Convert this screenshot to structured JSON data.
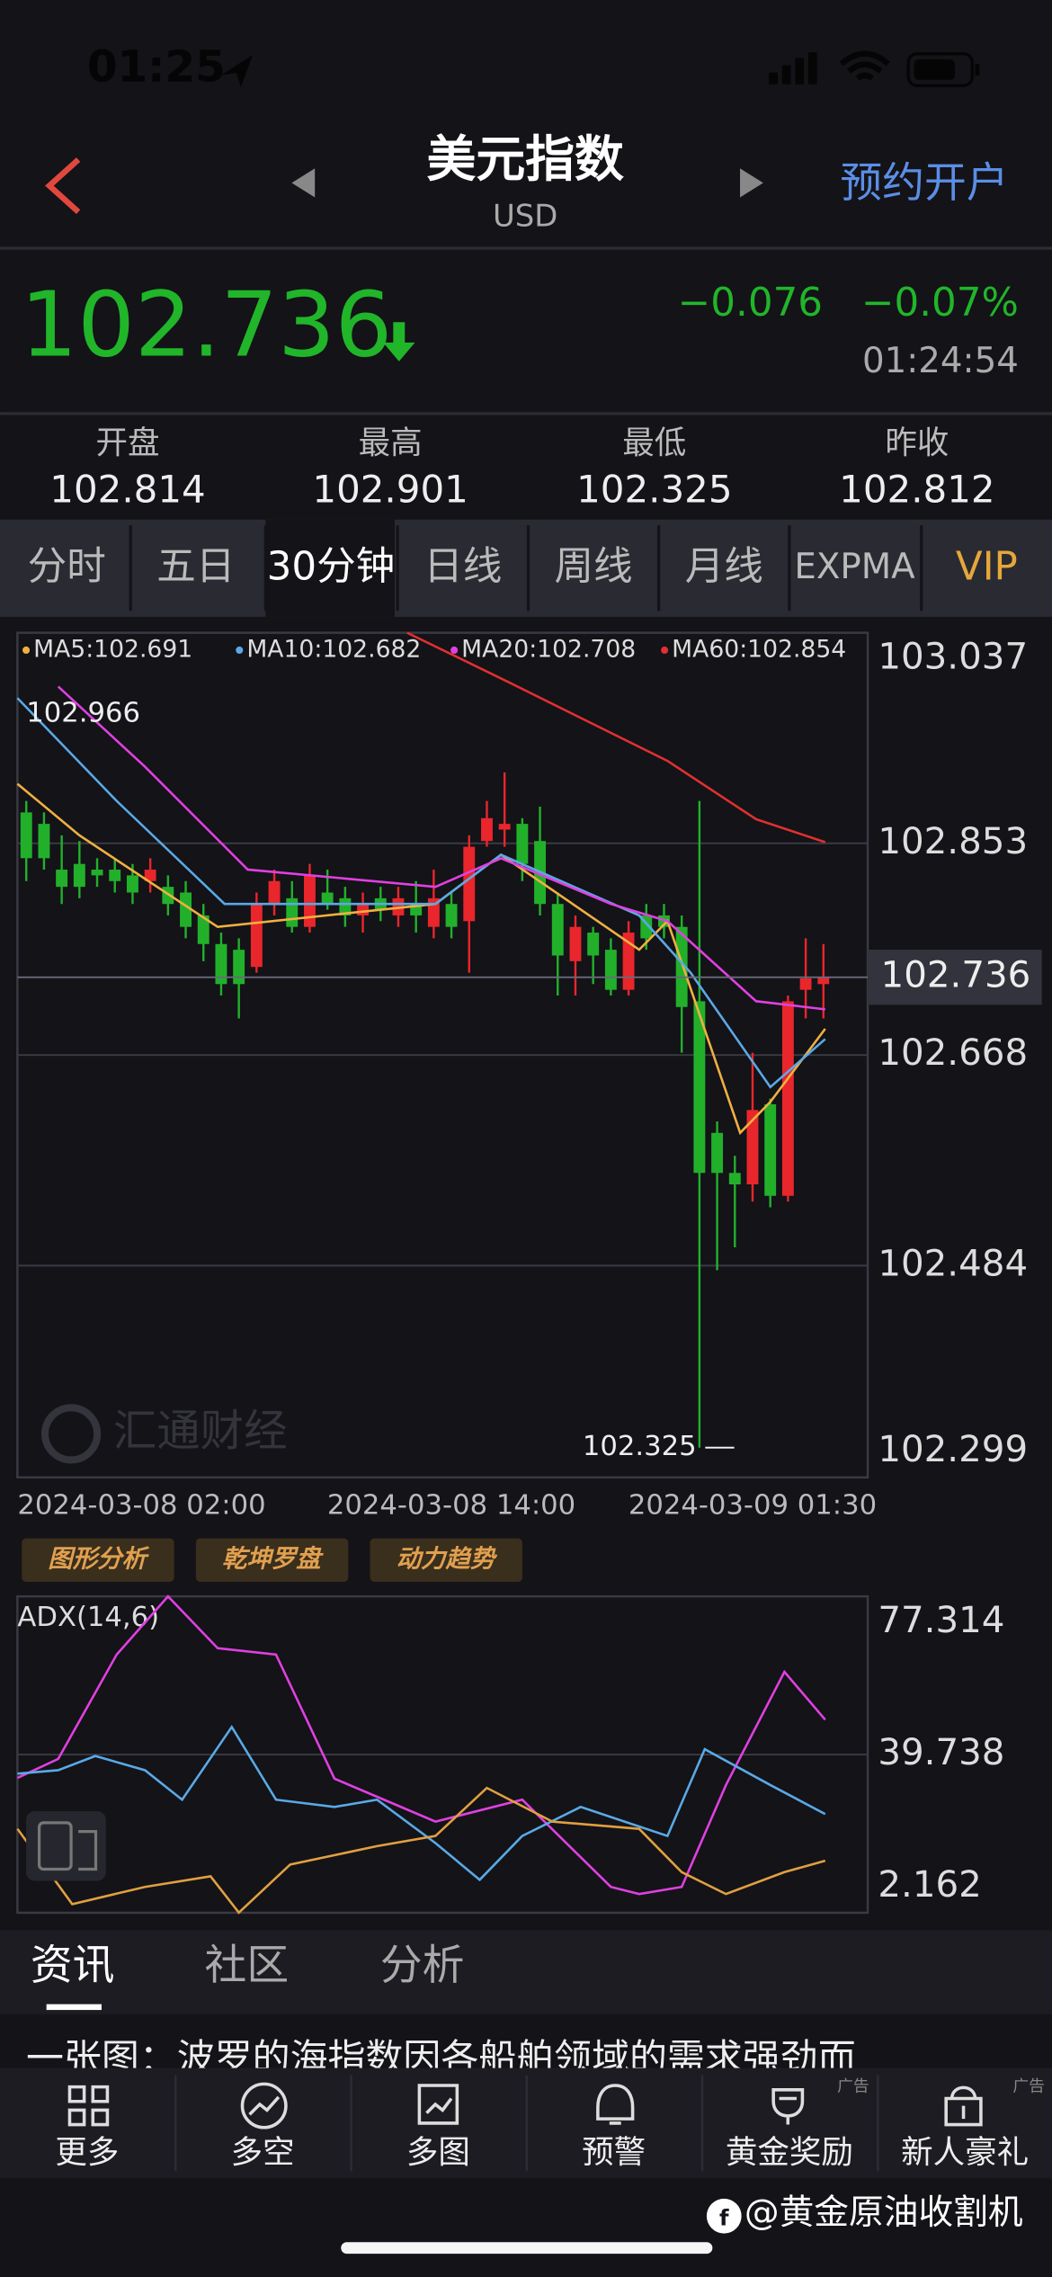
{
  "status_bar": {
    "time": "01:25"
  },
  "header": {
    "title": "美元指数",
    "subtitle": "USD",
    "action": "预约开户"
  },
  "quote": {
    "price": "102.736",
    "change": "−0.076",
    "change_pct": "−0.07%",
    "time": "01:24:54"
  },
  "stats": [
    {
      "label": "开盘",
      "value": "102.814"
    },
    {
      "label": "最高",
      "value": "102.901"
    },
    {
      "label": "最低",
      "value": "102.325"
    },
    {
      "label": "昨收",
      "value": "102.812"
    }
  ],
  "tabs": [
    "分时",
    "五日",
    "30分钟",
    "日线",
    "周线",
    "月线",
    "EXPMA",
    "VIP"
  ],
  "chart_data": [
    {
      "type": "candlestick",
      "up_color": "#e8262b",
      "down_color": "#22b02b",
      "xlim": [
        -0.5,
        47.5
      ],
      "xticks": [
        {
          "value": 0,
          "label": "2024-03-08 02:00"
        },
        {
          "value": 24,
          "label": "2024-03-08 14:00"
        },
        {
          "value": 41,
          "label": "2024-03-09 01:30"
        }
      ],
      "ylim": [
        102.299,
        103.037
      ],
      "yticks": [
        103.037,
        102.853,
        102.668,
        102.484,
        102.299
      ],
      "grid": true,
      "current": 102.736,
      "open": [
        102.88,
        102.87,
        102.83,
        102.835,
        102.83,
        102.83,
        102.825,
        102.82,
        102.815,
        102.81,
        102.79,
        102.765,
        102.76,
        102.745,
        102.8,
        102.805,
        102.78,
        102.81,
        102.805,
        102.79,
        102.805,
        102.79,
        102.8,
        102.78,
        102.8,
        102.785,
        102.855,
        102.865,
        102.87,
        102.855,
        102.8,
        102.75,
        102.775,
        102.76,
        102.725,
        102.79,
        102.79,
        102.78,
        102.715,
        102.6,
        102.565,
        102.555,
        102.625,
        102.545,
        102.725,
        102.73
      ],
      "high": [
        102.89,
        102.88,
        102.86,
        102.855,
        102.84,
        102.84,
        102.835,
        102.84,
        102.825,
        102.82,
        102.8,
        102.775,
        102.77,
        102.81,
        102.83,
        102.82,
        102.835,
        102.83,
        102.815,
        102.81,
        102.815,
        102.815,
        102.82,
        102.83,
        102.81,
        102.86,
        102.89,
        102.915,
        102.875,
        102.885,
        102.81,
        102.79,
        102.78,
        102.77,
        102.785,
        102.8,
        102.8,
        102.79,
        102.89,
        102.61,
        102.58,
        102.67,
        102.63,
        102.72,
        102.77,
        102.765
      ],
      "low": [
        102.82,
        102.83,
        102.8,
        102.805,
        102.815,
        102.81,
        102.8,
        102.81,
        102.79,
        102.77,
        102.75,
        102.72,
        102.7,
        102.74,
        102.79,
        102.775,
        102.775,
        102.795,
        102.78,
        102.775,
        102.785,
        102.78,
        102.775,
        102.77,
        102.77,
        102.74,
        102.85,
        102.85,
        102.82,
        102.79,
        102.72,
        102.72,
        102.73,
        102.72,
        102.72,
        102.76,
        102.77,
        102.67,
        102.325,
        102.48,
        102.5,
        102.54,
        102.535,
        102.54,
        102.7,
        102.7
      ],
      "close": [
        102.84,
        102.84,
        102.815,
        102.815,
        102.825,
        102.82,
        102.81,
        102.83,
        102.8,
        102.78,
        102.765,
        102.73,
        102.73,
        102.8,
        102.82,
        102.78,
        102.825,
        102.8,
        102.79,
        102.8,
        102.795,
        102.805,
        102.79,
        102.805,
        102.78,
        102.85,
        102.875,
        102.87,
        102.835,
        102.8,
        102.755,
        102.78,
        102.755,
        102.725,
        102.775,
        102.77,
        102.78,
        102.71,
        102.565,
        102.565,
        102.555,
        102.62,
        102.545,
        102.715,
        102.735,
        102.736
      ],
      "series": [
        {
          "name": "MA5:102.691",
          "color": "#f0b040",
          "x": [
            -0.5,
            3,
            10.8,
            23.1,
            26.8,
            34.6,
            36.2,
            40.3,
            42,
            45.1
          ],
          "values": [
            102.905,
            102.86,
            102.78,
            102.8,
            102.843,
            102.76,
            102.785,
            102.6,
            102.627,
            102.691
          ]
        },
        {
          "name": "MA10:102.682",
          "color": "#5aa9e6",
          "x": [
            -0.5,
            5.1,
            11.2,
            23.1,
            26.8,
            34.6,
            37.5,
            42,
            45.1
          ],
          "values": [
            102.98,
            102.89,
            102.8,
            102.8,
            102.843,
            102.79,
            102.74,
            102.64,
            102.682
          ]
        },
        {
          "name": "MA20:102.708",
          "color": "#e040e0",
          "x": [
            1.8,
            6.7,
            12.5,
            23.1,
            26.8,
            33,
            36.2,
            41.2,
            45.1
          ],
          "values": [
            102.99,
            102.92,
            102.83,
            102.815,
            102.84,
            102.8,
            102.785,
            102.715,
            102.708
          ]
        },
        {
          "name": "MA60:102.854",
          "color": "#e03030",
          "x": [
            21.5,
            27.2,
            36.2,
            41.2,
            45.1
          ],
          "values": [
            103.037,
            102.994,
            102.925,
            102.874,
            102.854
          ]
        }
      ],
      "annotations": [
        {
          "x": 0,
          "value": 102.966
        },
        {
          "x": 38,
          "value": 102.325
        }
      ],
      "watermark": "汇通财经"
    },
    {
      "type": "line",
      "title": "ADX(14,6)",
      "xlim": [
        -0.5,
        47.5
      ],
      "ylim": [
        2.162,
        77.314
      ],
      "yticks": [
        77.314,
        39.738,
        2.162
      ],
      "grid": true,
      "series": [
        {
          "color": "#e040e0",
          "x": [
            -0.5,
            1.8,
            5.1,
            8,
            10.8,
            14.1,
            17.4,
            23.1,
            28,
            33,
            34.6,
            37,
            39.5,
            42.8,
            45.1
          ],
          "values": [
            34.2,
            38.7,
            63.5,
            77.3,
            65,
            63.5,
            34,
            23.8,
            29,
            8.3,
            6.6,
            8.3,
            32.5,
            59.4,
            48
          ]
        },
        {
          "color": "#5aa9e6",
          "x": [
            -0.5,
            1.8,
            3.9,
            6.7,
            8.8,
            11.6,
            14.1,
            17.4,
            19.8,
            23.1,
            25.6,
            28,
            31.3,
            36.2,
            38.3,
            42,
            45.1
          ],
          "values": [
            35.2,
            36,
            39.4,
            36,
            29,
            46.3,
            29,
            27.3,
            29,
            18.7,
            10,
            20.4,
            27.3,
            20.4,
            41,
            32.5,
            25.6
          ]
        },
        {
          "color": "#e0a040",
          "x": [
            -0.5,
            2.6,
            6.7,
            10.4,
            12,
            14.9,
            19.8,
            23.1,
            26,
            29.7,
            34.6,
            37,
            39.5,
            42.8,
            45.1
          ],
          "values": [
            22.1,
            4.2,
            8.3,
            10.8,
            2.2,
            13.6,
            18,
            20.4,
            31.8,
            23.8,
            22.1,
            11.8,
            6.6,
            11.8,
            14.5
          ]
        }
      ]
    }
  ],
  "tools": [
    "图形分析",
    "乾坤罗盘",
    "动力趋势"
  ],
  "news_tabs": [
    "资讯",
    "社区",
    "分析"
  ],
  "news_preview": "一张图：波罗的海指数因各船舶领域的需求强劲而",
  "nav": [
    {
      "label": "更多"
    },
    {
      "label": "多空"
    },
    {
      "label": "多图"
    },
    {
      "label": "预警"
    },
    {
      "label": "黄金奖励",
      "badge": "广告"
    },
    {
      "label": "新人豪礼",
      "badge": "广告"
    }
  ],
  "footer_watermark": "@黄金原油收割机"
}
